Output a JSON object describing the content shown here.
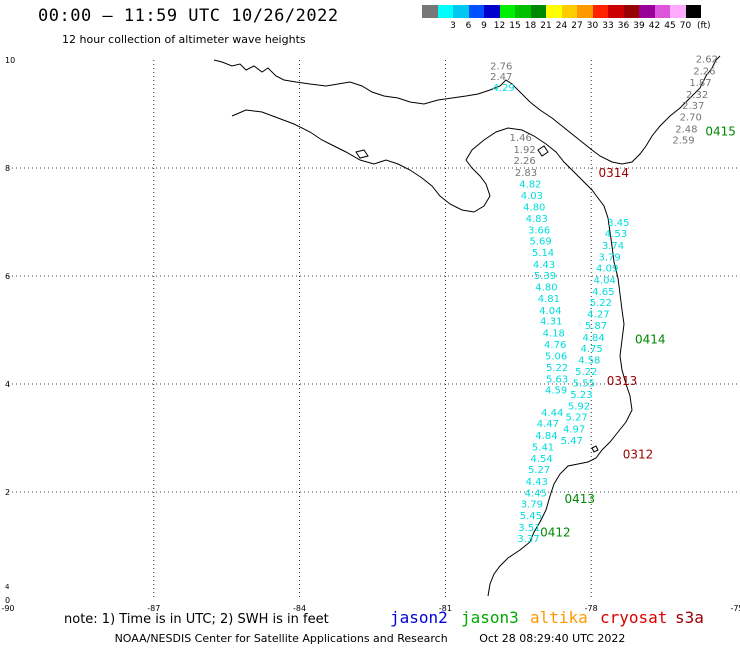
{
  "header": {
    "title": "00:00 – 11:59 UTC 10/26/2022",
    "subtitle": "12 hour collection of altimeter wave heights"
  },
  "color_scale": {
    "unit": "(ft)",
    "bins": [
      {
        "label": "",
        "color": "#777777"
      },
      {
        "label": "3",
        "color": "#00ffff"
      },
      {
        "label": "6",
        "color": "#00c8f0"
      },
      {
        "label": "9",
        "color": "#0050ff"
      },
      {
        "label": "12",
        "color": "#0000cc"
      },
      {
        "label": "15",
        "color": "#00ee00"
      },
      {
        "label": "18",
        "color": "#00c000"
      },
      {
        "label": "21",
        "color": "#008800"
      },
      {
        "label": "24",
        "color": "#ffff00"
      },
      {
        "label": "27",
        "color": "#ffcc00"
      },
      {
        "label": "30",
        "color": "#ff9900"
      },
      {
        "label": "33",
        "color": "#ff2200"
      },
      {
        "label": "36",
        "color": "#cc0000"
      },
      {
        "label": "39",
        "color": "#990000"
      },
      {
        "label": "42",
        "color": "#990099"
      },
      {
        "label": "45",
        "color": "#dd55dd"
      },
      {
        "label": "70",
        "color": "#ffaaff"
      },
      {
        "label": "",
        "color": "#000000"
      }
    ]
  },
  "axes": {
    "x_ticks": [
      "-90",
      "-87",
      "-84",
      "-81",
      "-78",
      "-75"
    ],
    "y_ticks": [
      "10",
      "8",
      "6",
      "4",
      "2",
      "0"
    ],
    "lon_range": [
      -90,
      -75
    ],
    "lat_range": [
      0,
      10
    ]
  },
  "passes": [
    {
      "label": "0314",
      "color": "#990000",
      "lon": -77.85,
      "lat": 7.83
    },
    {
      "label": "0415",
      "color": "#008800",
      "lon": -75.65,
      "lat": 8.6
    },
    {
      "label": "0414",
      "color": "#008800",
      "lon": -77.1,
      "lat": 4.75
    },
    {
      "label": "0313",
      "color": "#990000",
      "lon": -77.68,
      "lat": 3.98
    },
    {
      "label": "0312",
      "color": "#990000",
      "lon": -77.35,
      "lat": 2.62
    },
    {
      "label": "0413",
      "color": "#008800",
      "lon": -78.55,
      "lat": 1.8
    },
    {
      "label": "0412",
      "color": "#008800",
      "lon": -79.05,
      "lat": 1.18
    }
  ],
  "wave_labels": [
    {
      "text": "2.76",
      "color": "#777777",
      "lon": -80.08,
      "lat": 9.82
    },
    {
      "text": "2.47",
      "color": "#777777",
      "lon": -80.08,
      "lat": 9.63
    },
    {
      "text": "4.29",
      "color": "#00dddd",
      "lon": -80.03,
      "lat": 9.43
    },
    {
      "text": "1.46",
      "color": "#777777",
      "lon": -79.68,
      "lat": 8.5
    },
    {
      "text": "1.92",
      "color": "#777777",
      "lon": -79.6,
      "lat": 8.28
    },
    {
      "text": "2.26",
      "color": "#777777",
      "lon": -79.6,
      "lat": 8.07
    },
    {
      "text": "2.83",
      "color": "#777777",
      "lon": -79.57,
      "lat": 7.85
    },
    {
      "text": "4.82",
      "color": "#00dddd",
      "lon": -79.48,
      "lat": 7.64
    },
    {
      "text": "4.03",
      "color": "#00dddd",
      "lon": -79.45,
      "lat": 7.43
    },
    {
      "text": "4.80",
      "color": "#00dddd",
      "lon": -79.4,
      "lat": 7.21
    },
    {
      "text": "4.83",
      "color": "#00dddd",
      "lon": -79.35,
      "lat": 7.0
    },
    {
      "text": "3.66",
      "color": "#00dddd",
      "lon": -79.3,
      "lat": 6.79
    },
    {
      "text": "5.69",
      "color": "#00dddd",
      "lon": -79.27,
      "lat": 6.58
    },
    {
      "text": "5.14",
      "color": "#00dddd",
      "lon": -79.22,
      "lat": 6.37
    },
    {
      "text": "4.43",
      "color": "#00dddd",
      "lon": -79.2,
      "lat": 6.15
    },
    {
      "text": "5.39",
      "color": "#00dddd",
      "lon": -79.18,
      "lat": 5.94
    },
    {
      "text": "4.80",
      "color": "#00dddd",
      "lon": -79.15,
      "lat": 5.73
    },
    {
      "text": "4.81",
      "color": "#00dddd",
      "lon": -79.1,
      "lat": 5.52
    },
    {
      "text": "4.04",
      "color": "#00dddd",
      "lon": -79.07,
      "lat": 5.3
    },
    {
      "text": "4.31",
      "color": "#00dddd",
      "lon": -79.05,
      "lat": 5.1
    },
    {
      "text": "4.18",
      "color": "#00dddd",
      "lon": -79.0,
      "lat": 4.88
    },
    {
      "text": "4.76",
      "color": "#00dddd",
      "lon": -78.97,
      "lat": 4.67
    },
    {
      "text": "5.06",
      "color": "#00dddd",
      "lon": -78.95,
      "lat": 4.45
    },
    {
      "text": "5.22",
      "color": "#00dddd",
      "lon": -78.93,
      "lat": 4.24
    },
    {
      "text": "5.63",
      "color": "#00dddd",
      "lon": -78.93,
      "lat": 4.03
    },
    {
      "text": "4.59",
      "color": "#00dddd",
      "lon": -78.95,
      "lat": 3.82
    },
    {
      "text": "4.44",
      "color": "#00dddd",
      "lon": -79.03,
      "lat": 3.41
    },
    {
      "text": "4.47",
      "color": "#00dddd",
      "lon": -79.12,
      "lat": 3.2
    },
    {
      "text": "4.84",
      "color": "#00dddd",
      "lon": -79.15,
      "lat": 2.98
    },
    {
      "text": "5.41",
      "color": "#00dddd",
      "lon": -79.22,
      "lat": 2.77
    },
    {
      "text": "4.54",
      "color": "#00dddd",
      "lon": -79.25,
      "lat": 2.56
    },
    {
      "text": "5.27",
      "color": "#00dddd",
      "lon": -79.3,
      "lat": 2.35
    },
    {
      "text": "4.43",
      "color": "#00dddd",
      "lon": -79.35,
      "lat": 2.13
    },
    {
      "text": "4.45",
      "color": "#00dddd",
      "lon": -79.37,
      "lat": 1.92
    },
    {
      "text": "3.79",
      "color": "#00dddd",
      "lon": -79.45,
      "lat": 1.71
    },
    {
      "text": "5.45",
      "color": "#00dddd",
      "lon": -79.47,
      "lat": 1.5
    },
    {
      "text": "3.51",
      "color": "#00dddd",
      "lon": -79.5,
      "lat": 1.28
    },
    {
      "text": "3.37",
      "color": "#00dddd",
      "lon": -79.52,
      "lat": 1.07
    },
    {
      "text": "2.62",
      "color": "#777777",
      "lon": -75.85,
      "lat": 9.95
    },
    {
      "text": "2.26",
      "color": "#777777",
      "lon": -75.9,
      "lat": 9.73
    },
    {
      "text": "1.87",
      "color": "#777777",
      "lon": -75.98,
      "lat": 9.52
    },
    {
      "text": "2.32",
      "color": "#777777",
      "lon": -76.05,
      "lat": 9.3
    },
    {
      "text": "2.37",
      "color": "#777777",
      "lon": -76.13,
      "lat": 9.09
    },
    {
      "text": "2.70",
      "color": "#777777",
      "lon": -76.18,
      "lat": 8.88
    },
    {
      "text": "2.48",
      "color": "#777777",
      "lon": -76.27,
      "lat": 8.66
    },
    {
      "text": "2.59",
      "color": "#777777",
      "lon": -76.33,
      "lat": 8.45
    },
    {
      "text": "3.45",
      "color": "#00dddd",
      "lon": -77.67,
      "lat": 6.93
    },
    {
      "text": "4.53",
      "color": "#00dddd",
      "lon": -77.72,
      "lat": 6.72
    },
    {
      "text": "3.74",
      "color": "#00dddd",
      "lon": -77.78,
      "lat": 6.5
    },
    {
      "text": "3.79",
      "color": "#00dddd",
      "lon": -77.85,
      "lat": 6.29
    },
    {
      "text": "4.09",
      "color": "#00dddd",
      "lon": -77.9,
      "lat": 6.08
    },
    {
      "text": "4.04",
      "color": "#00dddd",
      "lon": -77.95,
      "lat": 5.86
    },
    {
      "text": "4.65",
      "color": "#00dddd",
      "lon": -77.98,
      "lat": 5.65
    },
    {
      "text": "5.22",
      "color": "#00dddd",
      "lon": -78.03,
      "lat": 5.44
    },
    {
      "text": "4.27",
      "color": "#00dddd",
      "lon": -78.08,
      "lat": 5.23
    },
    {
      "text": "5.87",
      "color": "#00dddd",
      "lon": -78.13,
      "lat": 5.02
    },
    {
      "text": "4.84",
      "color": "#00dddd",
      "lon": -78.18,
      "lat": 4.8
    },
    {
      "text": "4.75",
      "color": "#00dddd",
      "lon": -78.22,
      "lat": 4.59
    },
    {
      "text": "4.58",
      "color": "#00dddd",
      "lon": -78.27,
      "lat": 4.38
    },
    {
      "text": "5.22",
      "color": "#00dddd",
      "lon": -78.33,
      "lat": 4.17
    },
    {
      "text": "5.55",
      "color": "#00dddd",
      "lon": -78.38,
      "lat": 3.95
    },
    {
      "text": "5.23",
      "color": "#00dddd",
      "lon": -78.43,
      "lat": 3.74
    },
    {
      "text": "5.92",
      "color": "#00dddd",
      "lon": -78.48,
      "lat": 3.53
    },
    {
      "text": "5.27",
      "color": "#00dddd",
      "lon": -78.53,
      "lat": 3.32
    },
    {
      "text": "4.97",
      "color": "#00dddd",
      "lon": -78.58,
      "lat": 3.1
    },
    {
      "text": "5.47",
      "color": "#00dddd",
      "lon": -78.63,
      "lat": 2.89
    }
  ],
  "footer": {
    "note": "note:  1) Time is in UTC; 2) SWH is in feet",
    "satellites": [
      {
        "name": "jason2",
        "color": "#0000dd"
      },
      {
        "name": "jason3",
        "color": "#00aa00"
      },
      {
        "name": "altika",
        "color": "#ff9900"
      },
      {
        "name": "cryosat",
        "color": "#dd0000"
      },
      {
        "name": "s3a",
        "color": "#990000"
      }
    ],
    "credit_org": "NOAA/NESDIS Center for Satellite Applications and Research",
    "credit_time": "Oct 28 08:29:40 UTC 2022"
  }
}
